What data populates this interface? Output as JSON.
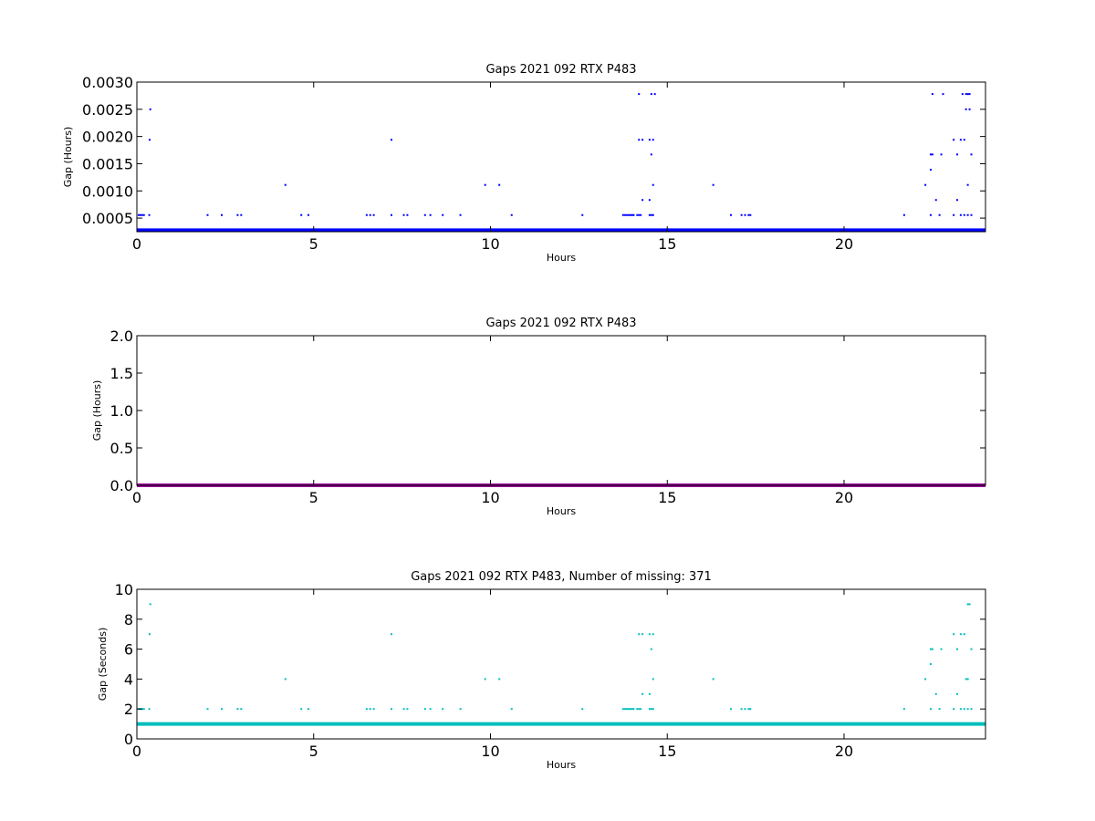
{
  "chart_data": [
    {
      "type": "scatter",
      "title": "Gaps 2021 092 RTX  P483",
      "xlabel": "Hours",
      "ylabel": "Gap (Hours)",
      "xlim": [
        0,
        24
      ],
      "ylim": [
        0.00025,
        0.003
      ],
      "xticks": [
        0,
        5,
        10,
        15,
        20
      ],
      "yticks": [
        0.0005,
        0.001,
        0.0015,
        0.002,
        0.0025,
        0.003
      ],
      "ytick_labels": [
        "0.0005",
        "0.0010",
        "0.0015",
        "0.0020",
        "0.0025",
        "0.0030"
      ],
      "color": "#0000ff",
      "baseline": 0.000278,
      "points": [
        [
          0.05,
          0.000556
        ],
        [
          0.1,
          0.000556
        ],
        [
          0.15,
          0.000556
        ],
        [
          0.2,
          0.000556
        ],
        [
          0.35,
          0.000556
        ],
        [
          0.36,
          0.00194
        ],
        [
          0.38,
          0.0025
        ],
        [
          2.0,
          0.000556
        ],
        [
          2.4,
          0.000556
        ],
        [
          2.85,
          0.000556
        ],
        [
          2.95,
          0.000556
        ],
        [
          4.2,
          0.00111
        ],
        [
          4.65,
          0.000556
        ],
        [
          4.85,
          0.000556
        ],
        [
          6.5,
          0.000556
        ],
        [
          6.6,
          0.000556
        ],
        [
          6.7,
          0.000556
        ],
        [
          7.2,
          0.000556
        ],
        [
          7.2,
          0.00194
        ],
        [
          7.55,
          0.000556
        ],
        [
          7.65,
          0.000556
        ],
        [
          8.15,
          0.000556
        ],
        [
          8.3,
          0.000556
        ],
        [
          8.65,
          0.000556
        ],
        [
          9.15,
          0.000556
        ],
        [
          9.85,
          0.00111
        ],
        [
          10.25,
          0.00111
        ],
        [
          10.6,
          0.000556
        ],
        [
          12.6,
          0.000556
        ],
        [
          13.75,
          0.000556
        ],
        [
          13.8,
          0.000556
        ],
        [
          13.85,
          0.000556
        ],
        [
          13.9,
          0.000556
        ],
        [
          13.95,
          0.000556
        ],
        [
          14.0,
          0.000556
        ],
        [
          14.05,
          0.000556
        ],
        [
          14.15,
          0.000556
        ],
        [
          14.2,
          0.000556
        ],
        [
          14.25,
          0.000556
        ],
        [
          14.2,
          0.00194
        ],
        [
          14.3,
          0.00194
        ],
        [
          14.2,
          0.00278
        ],
        [
          14.3,
          0.000833
        ],
        [
          14.5,
          0.000833
        ],
        [
          14.5,
          0.000556
        ],
        [
          14.55,
          0.000556
        ],
        [
          14.6,
          0.000556
        ],
        [
          14.5,
          0.00194
        ],
        [
          14.6,
          0.00194
        ],
        [
          14.55,
          0.00167
        ],
        [
          14.6,
          0.00111
        ],
        [
          14.55,
          0.00278
        ],
        [
          14.65,
          0.00278
        ],
        [
          16.3,
          0.00111
        ],
        [
          16.8,
          0.000556
        ],
        [
          17.1,
          0.000556
        ],
        [
          17.2,
          0.000556
        ],
        [
          17.3,
          0.000556
        ],
        [
          17.35,
          0.000556
        ],
        [
          21.7,
          0.000556
        ],
        [
          22.3,
          0.00111
        ],
        [
          22.45,
          0.000556
        ],
        [
          22.45,
          0.00167
        ],
        [
          22.5,
          0.00167
        ],
        [
          22.45,
          0.00139
        ],
        [
          22.5,
          0.00278
        ],
        [
          22.6,
          0.000833
        ],
        [
          22.7,
          0.000556
        ],
        [
          22.75,
          0.00167
        ],
        [
          22.8,
          0.00278
        ],
        [
          23.1,
          0.000556
        ],
        [
          23.1,
          0.00194
        ],
        [
          23.2,
          0.000833
        ],
        [
          23.2,
          0.00167
        ],
        [
          23.3,
          0.000556
        ],
        [
          23.3,
          0.00194
        ],
        [
          23.35,
          0.00278
        ],
        [
          23.4,
          0.000556
        ],
        [
          23.4,
          0.00194
        ],
        [
          23.45,
          0.00278
        ],
        [
          23.45,
          0.0025
        ],
        [
          23.5,
          0.00111
        ],
        [
          23.5,
          0.000556
        ],
        [
          23.5,
          0.00278
        ],
        [
          23.55,
          0.0025
        ],
        [
          23.55,
          0.00278
        ],
        [
          23.6,
          0.000556
        ],
        [
          23.6,
          0.00167
        ]
      ]
    },
    {
      "type": "scatter",
      "title": "Gaps 2021 092 RTX  P483",
      "xlabel": "Hours",
      "ylabel": "Gap (Hours)",
      "xlim": [
        0,
        24
      ],
      "ylim": [
        0,
        2.0
      ],
      "xticks": [
        0,
        5,
        10,
        15,
        20
      ],
      "yticks": [
        0.0,
        0.5,
        1.0,
        1.5,
        2.0
      ],
      "ytick_labels": [
        "0.0",
        "0.5",
        "1.0",
        "1.5",
        "2.0"
      ],
      "color": "#990099",
      "baseline": 0.0,
      "points": []
    },
    {
      "type": "scatter",
      "title": "Gaps 2021 092 RTX  P483, Number of missing: 371",
      "xlabel": "Hours",
      "ylabel": "Gap (Seconds)",
      "xlim": [
        0,
        24
      ],
      "ylim": [
        0,
        10
      ],
      "xticks": [
        0,
        5,
        10,
        15,
        20
      ],
      "yticks": [
        0,
        2,
        4,
        6,
        8,
        10
      ],
      "ytick_labels": [
        "0",
        "2",
        "4",
        "6",
        "8",
        "10"
      ],
      "color": "#00bfbf",
      "baseline": 1.0,
      "points": [
        [
          0.05,
          2
        ],
        [
          0.1,
          2
        ],
        [
          0.15,
          2
        ],
        [
          0.2,
          2
        ],
        [
          0.35,
          2
        ],
        [
          0.36,
          7
        ],
        [
          0.38,
          9
        ],
        [
          2.0,
          2
        ],
        [
          2.4,
          2
        ],
        [
          2.85,
          2
        ],
        [
          2.95,
          2
        ],
        [
          4.2,
          4
        ],
        [
          4.65,
          2
        ],
        [
          4.85,
          2
        ],
        [
          6.5,
          2
        ],
        [
          6.6,
          2
        ],
        [
          6.7,
          2
        ],
        [
          7.2,
          2
        ],
        [
          7.2,
          7
        ],
        [
          7.55,
          2
        ],
        [
          7.65,
          2
        ],
        [
          8.15,
          2
        ],
        [
          8.3,
          2
        ],
        [
          8.65,
          2
        ],
        [
          9.15,
          2
        ],
        [
          9.85,
          4
        ],
        [
          10.25,
          4
        ],
        [
          10.6,
          2
        ],
        [
          12.6,
          2
        ],
        [
          13.75,
          2
        ],
        [
          13.8,
          2
        ],
        [
          13.85,
          2
        ],
        [
          13.9,
          2
        ],
        [
          13.95,
          2
        ],
        [
          14.0,
          2
        ],
        [
          14.05,
          2
        ],
        [
          14.15,
          2
        ],
        [
          14.2,
          2
        ],
        [
          14.25,
          2
        ],
        [
          14.2,
          7
        ],
        [
          14.3,
          7
        ],
        [
          14.3,
          3
        ],
        [
          14.5,
          3
        ],
        [
          14.5,
          2
        ],
        [
          14.55,
          2
        ],
        [
          14.6,
          2
        ],
        [
          14.5,
          7
        ],
        [
          14.6,
          7
        ],
        [
          14.55,
          6
        ],
        [
          14.6,
          4
        ],
        [
          16.3,
          4
        ],
        [
          16.8,
          2
        ],
        [
          17.1,
          2
        ],
        [
          17.2,
          2
        ],
        [
          17.3,
          2
        ],
        [
          17.35,
          2
        ],
        [
          21.7,
          2
        ],
        [
          22.3,
          4
        ],
        [
          22.45,
          2
        ],
        [
          22.45,
          6
        ],
        [
          22.5,
          6
        ],
        [
          22.45,
          5
        ],
        [
          22.6,
          3
        ],
        [
          22.7,
          2
        ],
        [
          22.75,
          6
        ],
        [
          23.1,
          2
        ],
        [
          23.1,
          7
        ],
        [
          23.2,
          3
        ],
        [
          23.2,
          6
        ],
        [
          23.3,
          2
        ],
        [
          23.3,
          7
        ],
        [
          23.4,
          2
        ],
        [
          23.4,
          7
        ],
        [
          23.45,
          4
        ],
        [
          23.5,
          4
        ],
        [
          23.5,
          2
        ],
        [
          23.5,
          9
        ],
        [
          23.55,
          9
        ],
        [
          23.6,
          2
        ],
        [
          23.6,
          6
        ]
      ]
    }
  ]
}
